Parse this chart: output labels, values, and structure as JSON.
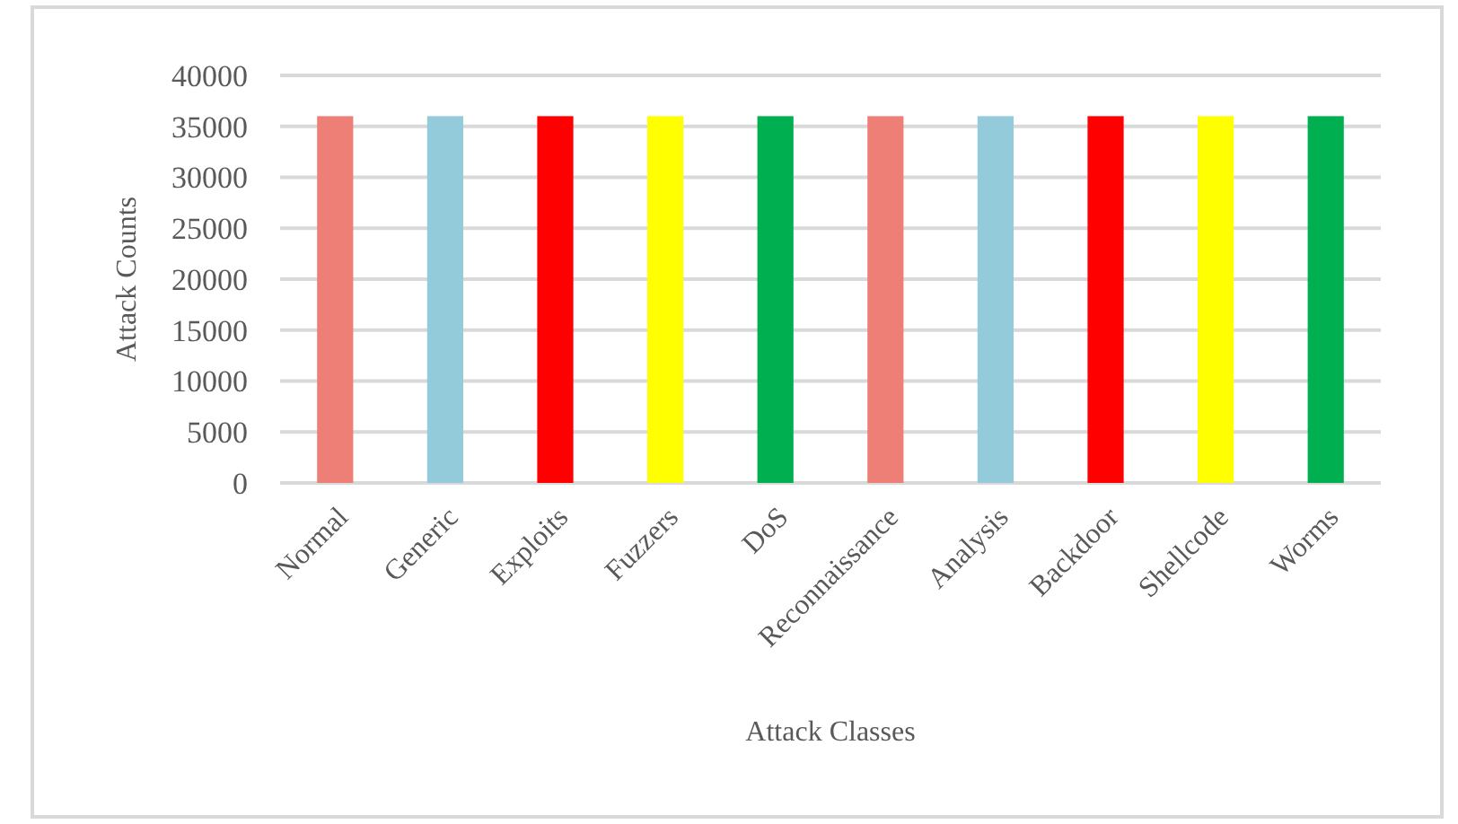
{
  "chart_data": {
    "type": "bar",
    "xlabel": "Attack Classes",
    "ylabel": "Attack Counts",
    "categories": [
      "Normal",
      "Generic",
      "Exploits",
      "Fuzzers",
      "DoS",
      "Reconnaissance",
      "Analysis",
      "Backdoor",
      "Shellcode",
      "Worms"
    ],
    "values": [
      36000,
      36000,
      36000,
      36000,
      36000,
      36000,
      36000,
      36000,
      36000,
      36000
    ],
    "colors": [
      "#ee7f76",
      "#93cbdb",
      "#ff0000",
      "#ffff00",
      "#00b050",
      "#ee7f76",
      "#93cbdb",
      "#ff0000",
      "#ffff00",
      "#00b050"
    ],
    "ylim": [
      0,
      40000
    ],
    "yticks": [
      0,
      5000,
      10000,
      15000,
      20000,
      25000,
      30000,
      35000,
      40000
    ],
    "grid": "y"
  }
}
